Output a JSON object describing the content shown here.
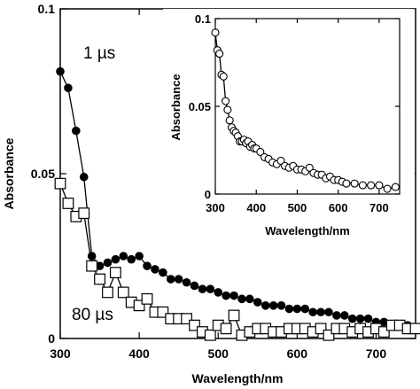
{
  "chart_data": [
    {
      "type": "scatter",
      "xlabel": "Wavelength/nm",
      "ylabel": "Absorbance",
      "xlim": [
        300,
        750
      ],
      "ylim": [
        0,
        0.1
      ],
      "xticks": [
        "300",
        "400",
        "500",
        "600",
        "700"
      ],
      "yticks": [
        "0",
        "0.05",
        "0.1"
      ],
      "grid": false,
      "annotations": [
        {
          "text": "1 µs",
          "x": 326,
          "y": 0.087
        },
        {
          "text": "80 µs",
          "x": 328,
          "y": 0.008
        }
      ],
      "series": [
        {
          "marker": "filled-circle",
          "color": "#000000",
          "x": [
            300,
            310,
            320,
            330,
            340,
            350,
            360,
            370,
            380,
            390,
            400,
            410,
            420,
            430,
            440,
            450,
            460,
            470,
            480,
            490,
            500,
            510,
            520,
            530,
            540,
            550,
            560,
            570,
            580,
            590,
            600,
            610,
            620,
            630,
            640,
            650,
            660,
            670,
            680,
            690,
            700,
            710,
            720,
            730,
            740,
            750
          ],
          "y": [
            0.081,
            0.076,
            0.063,
            0.049,
            0.025,
            0.022,
            0.023,
            0.024,
            0.025,
            0.024,
            0.025,
            0.022,
            0.021,
            0.02,
            0.018,
            0.018,
            0.017,
            0.016,
            0.015,
            0.015,
            0.014,
            0.013,
            0.013,
            0.012,
            0.012,
            0.011,
            0.01,
            0.01,
            0.01,
            0.009,
            0.009,
            0.009,
            0.008,
            0.008,
            0.008,
            0.007,
            0.007,
            0.006,
            0.006,
            0.006,
            0.005,
            0.005,
            0.004,
            0.004,
            0.004,
            0.003
          ]
        },
        {
          "marker": "open-square",
          "color": "#000000",
          "x": [
            300,
            310,
            320,
            330,
            340,
            350,
            360,
            370,
            380,
            390,
            400,
            410,
            420,
            430,
            440,
            450,
            460,
            470,
            480,
            490,
            500,
            510,
            520,
            530,
            540,
            550,
            560,
            570,
            580,
            590,
            600,
            610,
            620,
            630,
            640,
            650,
            660,
            670,
            680,
            690,
            700,
            710,
            720,
            730,
            740,
            750
          ],
          "y": [
            0.047,
            0.041,
            0.037,
            0.038,
            0.022,
            0.018,
            0.014,
            0.02,
            0.014,
            0.011,
            0.01,
            0.012,
            0.008,
            0.008,
            0.006,
            0.006,
            0.006,
            0.004,
            0.002,
            0.001,
            0.004,
            0.003,
            0.007,
            0.001,
            0.002,
            0.003,
            0.003,
            0.002,
            0.002,
            0.003,
            0.003,
            0.003,
            0.002,
            0.003,
            0.001,
            0.003,
            0.003,
            0.002,
            0.003,
            0.002,
            0.003,
            0.002,
            0.004,
            0.004,
            0.003,
            0.003
          ]
        }
      ]
    },
    {
      "type": "scatter",
      "xlabel": "Wavelength/nm",
      "ylabel": "Absorbance",
      "xlim": [
        300,
        750
      ],
      "ylim": [
        0,
        0.1
      ],
      "xticks": [
        "300",
        "400",
        "500",
        "600",
        "700"
      ],
      "yticks": [
        "0",
        "0.05",
        "0.1"
      ],
      "grid": false,
      "series": [
        {
          "marker": "open-circle",
          "color": "#000000",
          "x": [
            300,
            305,
            310,
            315,
            320,
            325,
            330,
            335,
            340,
            345,
            350,
            355,
            360,
            365,
            370,
            375,
            380,
            385,
            390,
            395,
            400,
            410,
            420,
            430,
            440,
            450,
            460,
            470,
            480,
            490,
            500,
            510,
            520,
            530,
            540,
            550,
            560,
            570,
            580,
            590,
            600,
            610,
            620,
            640,
            660,
            680,
            700,
            720,
            740
          ],
          "y": [
            0.092,
            0.082,
            0.08,
            0.068,
            0.067,
            0.053,
            0.048,
            0.042,
            0.038,
            0.036,
            0.035,
            0.033,
            0.03,
            0.03,
            0.031,
            0.029,
            0.03,
            0.027,
            0.028,
            0.026,
            0.026,
            0.024,
            0.021,
            0.02,
            0.018,
            0.017,
            0.019,
            0.016,
            0.015,
            0.016,
            0.014,
            0.014,
            0.013,
            0.015,
            0.012,
            0.011,
            0.011,
            0.009,
            0.01,
            0.008,
            0.008,
            0.007,
            0.006,
            0.006,
            0.005,
            0.005,
            0.005,
            0.003,
            0.004
          ]
        }
      ]
    }
  ]
}
